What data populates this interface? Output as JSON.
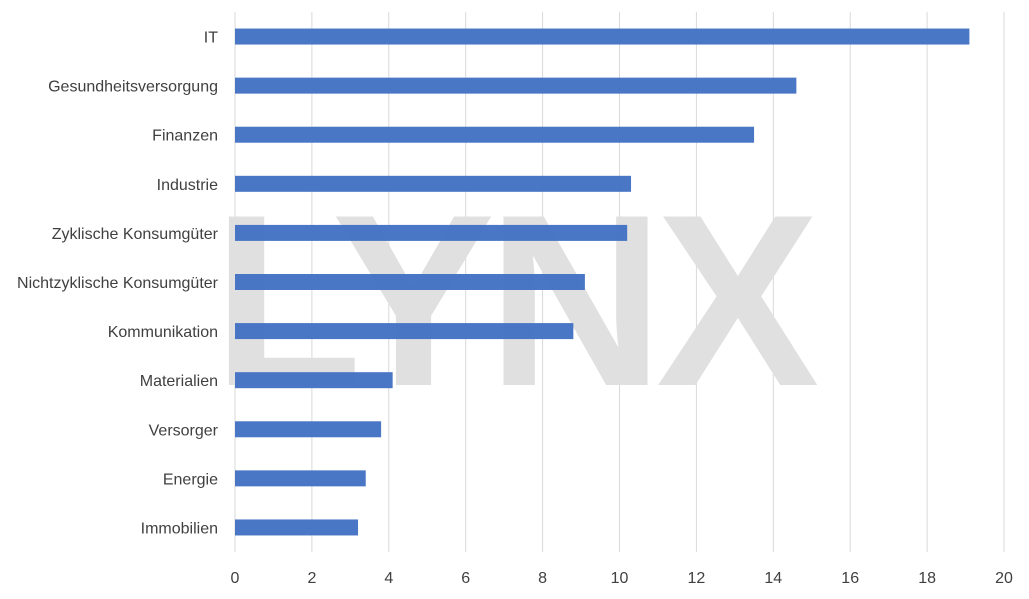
{
  "chart_data": {
    "type": "bar",
    "orientation": "horizontal",
    "title": "",
    "xlabel": "",
    "ylabel": "",
    "categories": [
      "IT",
      "Gesundheitsversorgung",
      "Finanzen",
      "Industrie",
      "Zyklische Konsumgüter",
      "Nichtzyklische Konsumgüter",
      "Kommunikation",
      "Materialien",
      "Versorger",
      "Energie",
      "Immobilien"
    ],
    "values": [
      19.1,
      14.6,
      13.5,
      10.3,
      10.2,
      9.1,
      8.8,
      4.1,
      3.8,
      3.4,
      3.2
    ],
    "xlim": [
      0,
      20
    ],
    "xticks": [
      0,
      2,
      4,
      6,
      8,
      10,
      12,
      14,
      16,
      18,
      20
    ],
    "grid": "vertical",
    "legend": "none",
    "bar_color": "#4472c4",
    "grid_color": "#d9d9d9",
    "label_color": "#404040"
  },
  "watermark": {
    "text": "LYNX",
    "color": "#e0e0e0"
  }
}
